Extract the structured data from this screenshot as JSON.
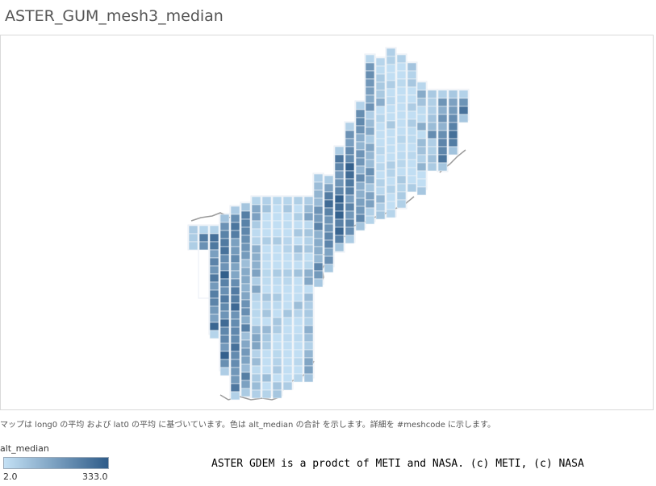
{
  "title": "ASTER_GUM_mesh3_median",
  "caption": "マップは long0 の平均 および lat0 の平均 に基づいています。色は alt_median の合計 を示します。詳細を #meshcode に示します。",
  "legend": {
    "title": "alt_median",
    "min_label": "2.0",
    "max_label": "333.0",
    "min_color": "#c4e1f5",
    "max_color": "#2f5c89"
  },
  "credit": "ASTER GDEM is a prodct of METI and NASA. (c) METI, (c) NASA",
  "map_data": {
    "type": "choropleth-grid",
    "color_field": "alt_median",
    "value_range": [
      2.0,
      333.0
    ]
  }
}
